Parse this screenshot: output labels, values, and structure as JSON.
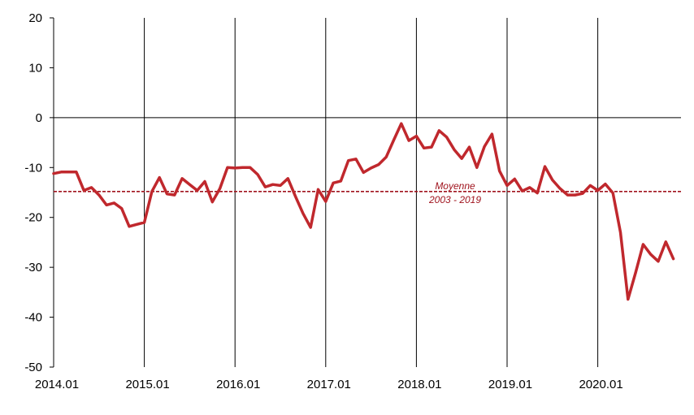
{
  "colors": {
    "series": "#c0282d",
    "axis": "#000000",
    "average": "#a0141e"
  },
  "chart_data": {
    "type": "line",
    "title": "",
    "xlabel": "",
    "ylabel": "",
    "ylim": [
      -50,
      20
    ],
    "yticks": [
      20,
      10,
      0,
      -10,
      -20,
      -30,
      -40,
      -50
    ],
    "xlim": [
      2014.0,
      2020.92
    ],
    "xticks": [
      {
        "value": 2014.0,
        "label": "2014.01"
      },
      {
        "value": 2015.0,
        "label": "2015.01"
      },
      {
        "value": 2016.0,
        "label": "2016.01"
      },
      {
        "value": 2017.0,
        "label": "2017.01"
      },
      {
        "value": 2018.0,
        "label": "2018.01"
      },
      {
        "value": 2019.0,
        "label": "2019.01"
      },
      {
        "value": 2020.0,
        "label": "2020.01"
      }
    ],
    "grid": "vertical-at-year-starts",
    "average_line": {
      "value": -14.8,
      "label_line1": "Moyenne",
      "label_line2": "2003 - 2019"
    },
    "series": [
      {
        "x": [
          "2014-01",
          "2014-02",
          "2014-03",
          "2014-04",
          "2014-05",
          "2014-06",
          "2014-07",
          "2014-08",
          "2014-09",
          "2014-10",
          "2014-11",
          "2014-12",
          "2015-01",
          "2015-02",
          "2015-03",
          "2015-04",
          "2015-05",
          "2015-06",
          "2015-07",
          "2015-08",
          "2015-09",
          "2015-10",
          "2015-11",
          "2015-12",
          "2016-01",
          "2016-02",
          "2016-03",
          "2016-04",
          "2016-05",
          "2016-06",
          "2016-07",
          "2016-08",
          "2016-09",
          "2016-10",
          "2016-11",
          "2016-12",
          "2017-01",
          "2017-02",
          "2017-03",
          "2017-04",
          "2017-05",
          "2017-06",
          "2017-07",
          "2017-08",
          "2017-09",
          "2017-10",
          "2017-11",
          "2017-12",
          "2018-01",
          "2018-02",
          "2018-03",
          "2018-04",
          "2018-05",
          "2018-06",
          "2018-07",
          "2018-08",
          "2018-09",
          "2018-10",
          "2018-11",
          "2018-12",
          "2019-01",
          "2019-02",
          "2019-03",
          "2019-04",
          "2019-05",
          "2019-06",
          "2019-07",
          "2019-08",
          "2019-09",
          "2019-10",
          "2019-11",
          "2019-12",
          "2020-01",
          "2020-02",
          "2020-03",
          "2020-04",
          "2020-05",
          "2020-06",
          "2020-07",
          "2020-08",
          "2020-09",
          "2020-10",
          "2020-11"
        ],
        "values": [
          -11.2,
          -10.9,
          -10.9,
          -10.9,
          -14.6,
          -14.0,
          -15.5,
          -17.5,
          -17.1,
          -18.2,
          -21.8,
          -21.4,
          -21.0,
          -14.8,
          -12.0,
          -15.3,
          -15.5,
          -12.2,
          -13.4,
          -14.6,
          -12.8,
          -16.9,
          -14.2,
          -10.0,
          -10.1,
          -10.0,
          -10.0,
          -11.4,
          -13.9,
          -13.4,
          -13.6,
          -12.2,
          -15.8,
          -19.2,
          -22.0,
          -14.4,
          -16.8,
          -13.1,
          -12.7,
          -8.6,
          -8.3,
          -11.0,
          -10.1,
          -9.4,
          -7.9,
          -4.5,
          -1.2,
          -4.6,
          -3.7,
          -6.1,
          -5.9,
          -2.6,
          -3.9,
          -6.4,
          -8.2,
          -5.9,
          -10.0,
          -5.8,
          -3.3,
          -10.7,
          -13.6,
          -12.3,
          -14.7,
          -14.0,
          -15.1,
          -9.8,
          -12.5,
          -14.2,
          -15.5,
          -15.5,
          -15.2,
          -13.6,
          -14.6,
          -13.3,
          -15.1,
          -23.0,
          -36.4,
          -31.1,
          -25.4,
          -27.4,
          -28.8,
          -24.9,
          -28.3
        ]
      }
    ]
  }
}
